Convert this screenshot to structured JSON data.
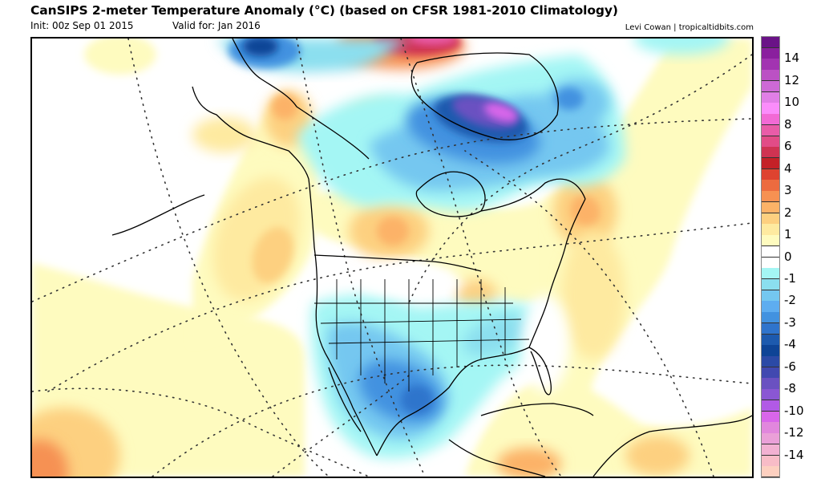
{
  "header": {
    "title": "CanSIPS 2-meter Temperature Anomaly (°C) (based on CFSR 1981-2010 Climatology)",
    "init": "Init: 00z Sep 01 2015",
    "valid": "Valid for: Jan 2016",
    "credit": "Levi Cowan | tropicaltidbits.com"
  },
  "map": {
    "region": "North America",
    "variable": "2-meter Temperature Anomaly",
    "units": "°C"
  },
  "colorbar": {
    "colors": [
      "#6a1387",
      "#8a1f9e",
      "#a234b1",
      "#bb51c4",
      "#cd69d6",
      "#e07fe6",
      "#fb8dfb",
      "#f26ad5",
      "#e95ca8",
      "#e24c87",
      "#cf3352",
      "#c42127",
      "#de4330",
      "#ec6b3f",
      "#f69152",
      "#fcb267",
      "#fdd080",
      "#feeaa0",
      "#fefbbf",
      "#ffffff",
      "#ffffff",
      "#a4f6f4",
      "#8bdfef",
      "#74c7f0",
      "#5eadf0",
      "#4292e0",
      "#2f74cc",
      "#1d5aae",
      "#0e4496",
      "#2b4aa6",
      "#4149b0",
      "#6a51c1",
      "#8a57d3",
      "#b15ae6",
      "#d866ea",
      "#e187dd",
      "#eaa0d8",
      "#f2b1d2",
      "#f8bcc7",
      "#fdd0c0"
    ],
    "labels": [
      {
        "text": "14",
        "boundary": 2
      },
      {
        "text": "12",
        "boundary": 4
      },
      {
        "text": "10",
        "boundary": 6
      },
      {
        "text": "8",
        "boundary": 8
      },
      {
        "text": "6",
        "boundary": 10
      },
      {
        "text": "4",
        "boundary": 12
      },
      {
        "text": "3",
        "boundary": 14
      },
      {
        "text": "2",
        "boundary": 16
      },
      {
        "text": "1",
        "boundary": 18
      },
      {
        "text": "0",
        "boundary": 20
      },
      {
        "text": "-1",
        "boundary": 22
      },
      {
        "text": "-2",
        "boundary": 24
      },
      {
        "text": "-3",
        "boundary": 26
      },
      {
        "text": "-4",
        "boundary": 28
      },
      {
        "text": "-6",
        "boundary": 30
      },
      {
        "text": "-8",
        "boundary": 32
      },
      {
        "text": "-10",
        "boundary": 34
      },
      {
        "text": "-12",
        "boundary": 36
      },
      {
        "text": "-14",
        "boundary": 38
      }
    ]
  },
  "colors": {
    "warm1": "#fefbbf",
    "warm2": "#feeaa0",
    "warm3": "#fdd080",
    "warm4": "#fcb267",
    "warm5": "#f69152",
    "warm6": "#ec6b3f",
    "hot": "#cf3352",
    "pink": "#e95ca8",
    "cold1": "#a4f6f4",
    "cold2": "#8bdfef",
    "cold3": "#74c7f0",
    "cold4": "#5eadf0",
    "cold5": "#4292e0",
    "cold6": "#2f74cc",
    "cold7": "#1d5aae",
    "cold8": "#0e4496",
    "violet": "#6a51c1",
    "magenta": "#d866ea"
  }
}
